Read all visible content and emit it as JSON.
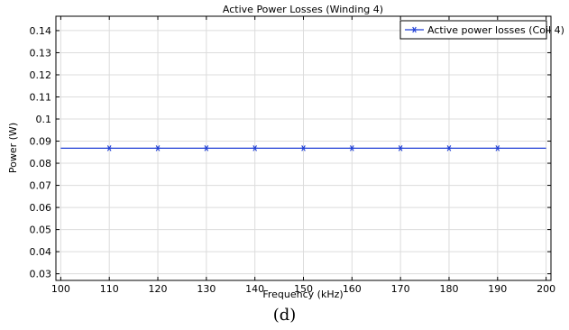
{
  "chart_data": {
    "type": "line",
    "title": "Active Power Losses (Winding 4)",
    "xlabel": "Frequency (kHz)",
    "ylabel": "Power (W)",
    "xlim": [
      99,
      201
    ],
    "ylim": [
      0.027,
      0.1465
    ],
    "x_ticks": [
      100,
      110,
      120,
      130,
      140,
      150,
      160,
      170,
      180,
      190,
      200
    ],
    "x_tick_labels": [
      "100",
      "110",
      "120",
      "130",
      "140",
      "150",
      "160",
      "170",
      "180",
      "190",
      "200"
    ],
    "y_ticks": [
      0.03,
      0.04,
      0.05,
      0.06,
      0.07,
      0.08,
      0.09,
      0.1,
      0.11,
      0.12,
      0.13,
      0.14
    ],
    "y_tick_labels": [
      "0.03",
      "0.04",
      "0.05",
      "0.06",
      "0.07",
      "0.08",
      "0.09",
      "0.1",
      "0.11",
      "0.12",
      "0.13",
      "0.14"
    ],
    "grid": true,
    "legend_position": "top-right",
    "series": [
      {
        "name": "Active power losses (Coil 4)",
        "color": "#1f3fd6",
        "marker": "asterisk",
        "line_x": [
          100,
          200
        ],
        "line_y": [
          0.0868,
          0.0868
        ],
        "x": [
          110,
          120,
          130,
          140,
          150,
          160,
          170,
          180,
          190
        ],
        "y": [
          0.0868,
          0.0868,
          0.0868,
          0.0868,
          0.0868,
          0.0868,
          0.0868,
          0.0868,
          0.0868
        ]
      }
    ]
  },
  "caption": "(d)"
}
